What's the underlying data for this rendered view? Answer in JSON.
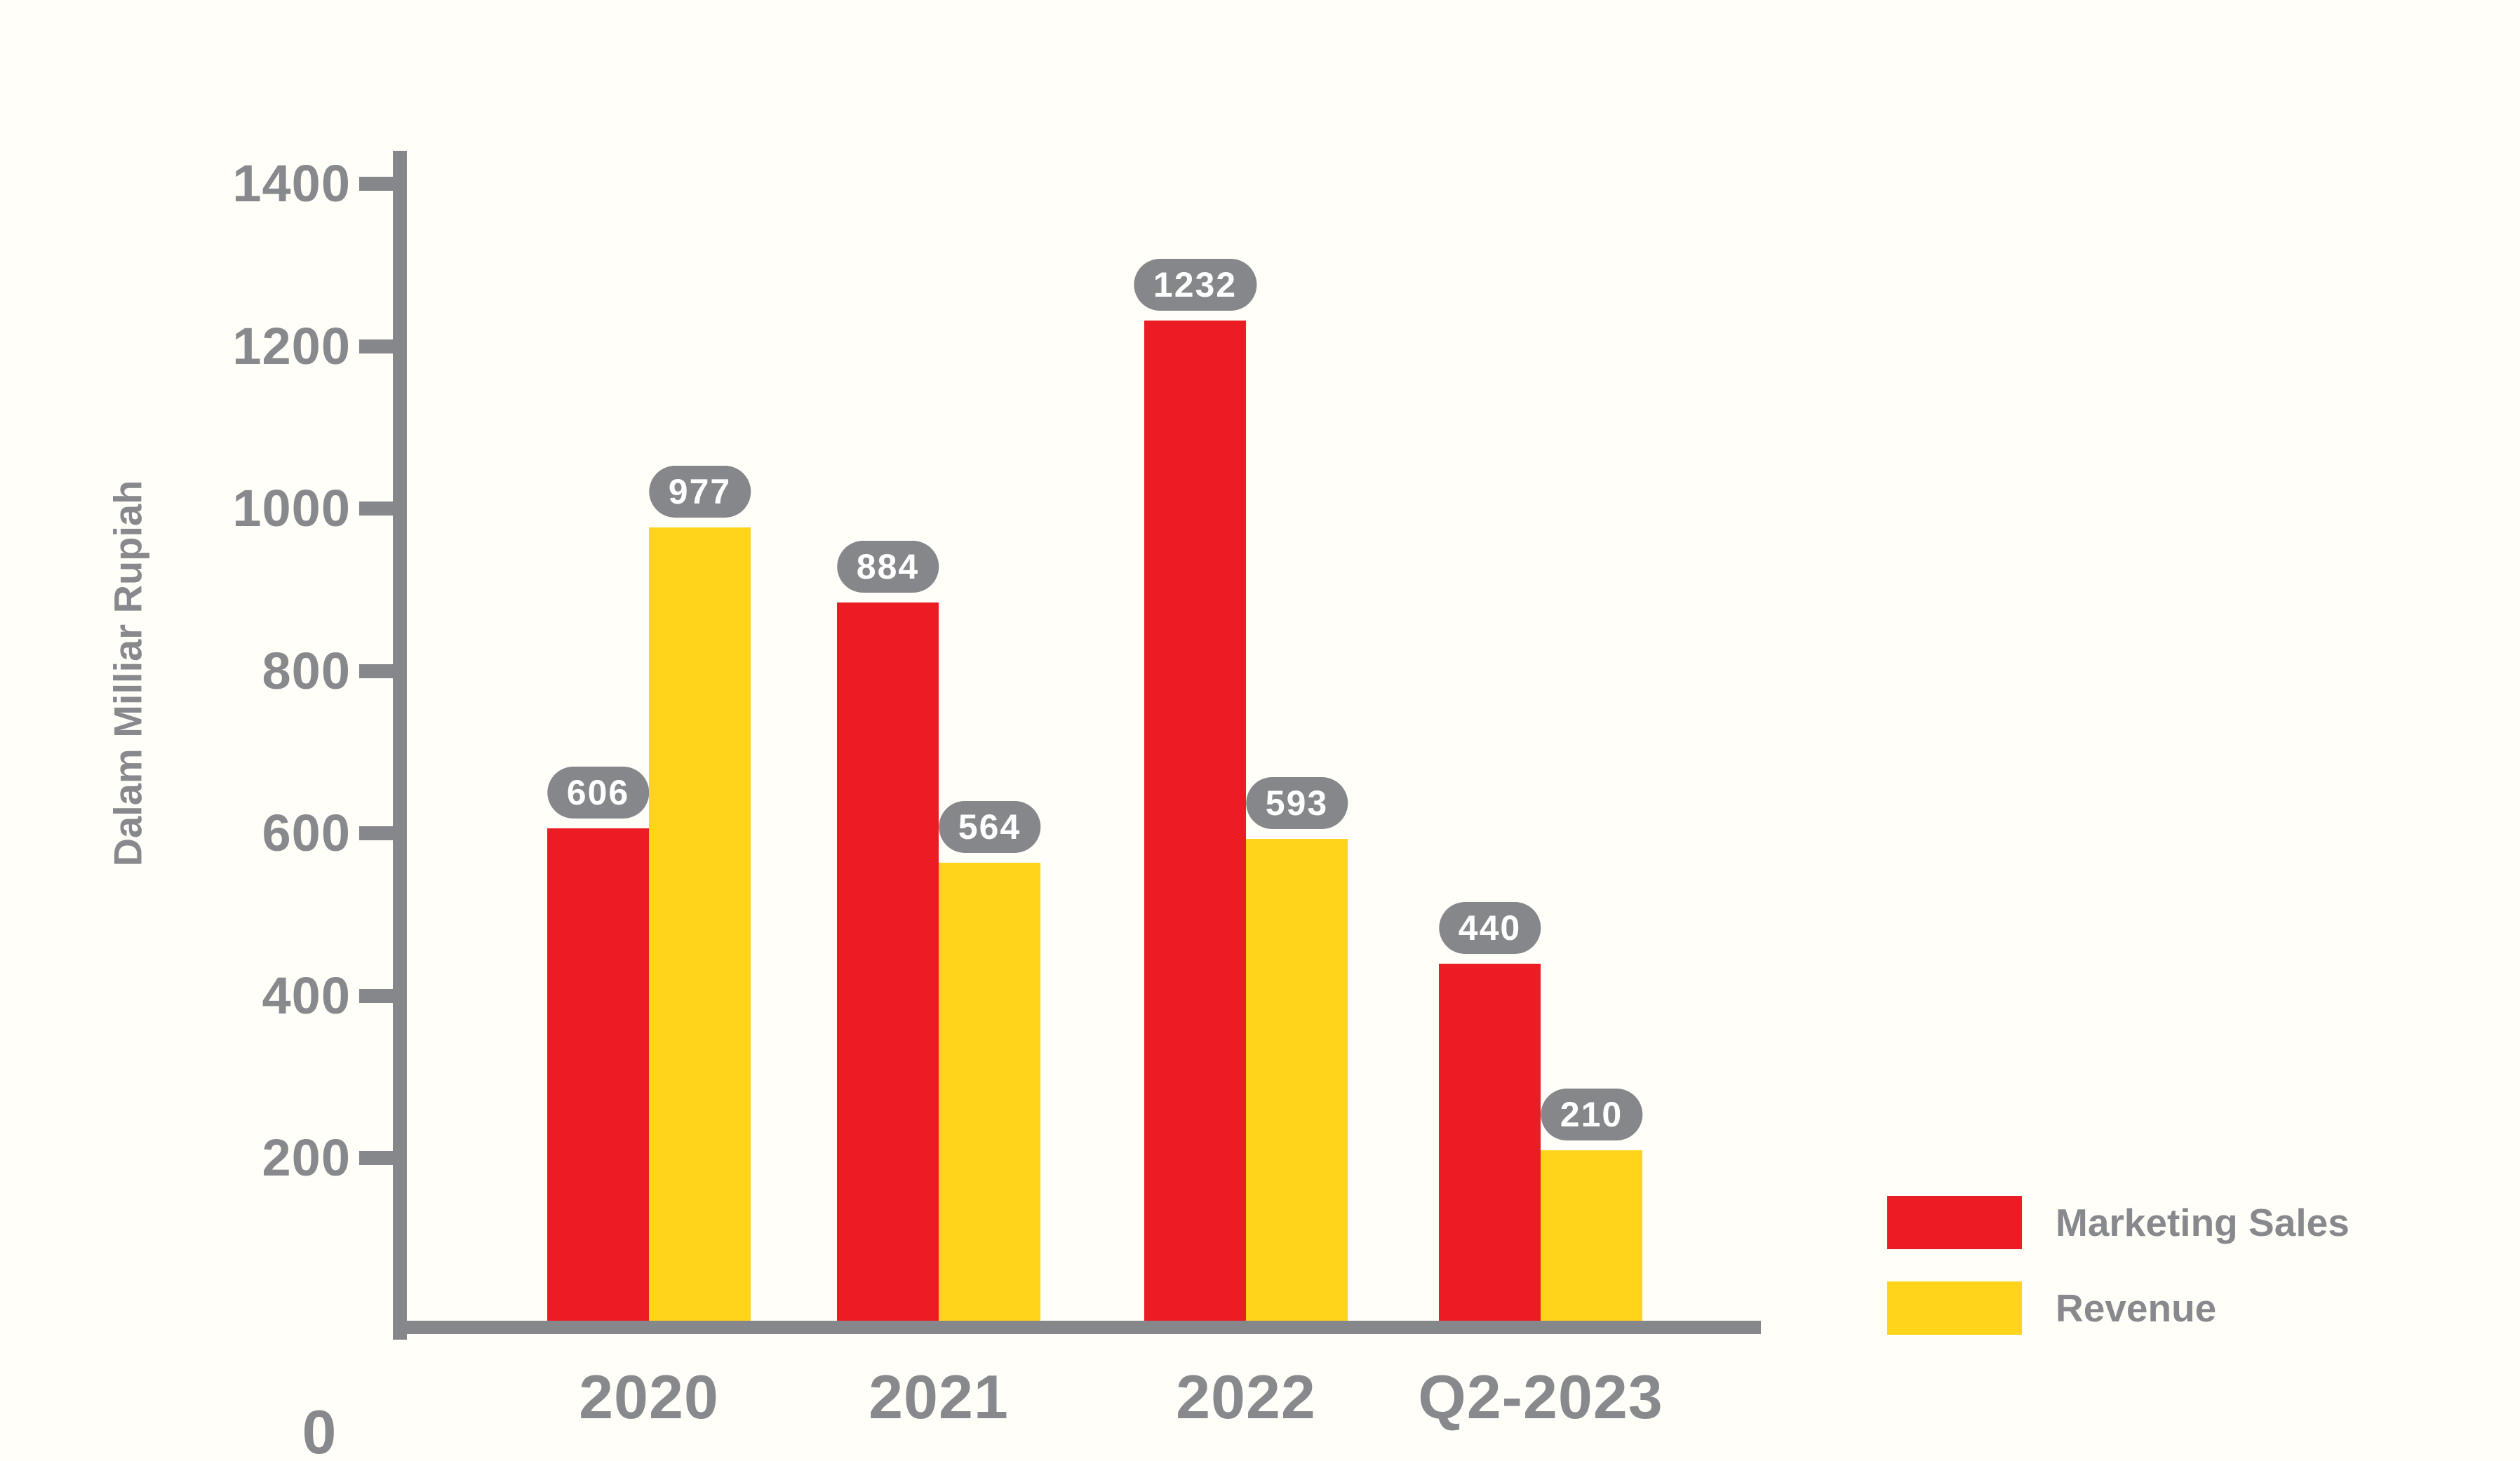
{
  "colors": {
    "red": "#EC1C24",
    "yellow": "#FFD41A",
    "axis_gray": "#85878A",
    "text_gray": "#87898C",
    "pill_bg": "#85878A",
    "pill_text": "#FFFFFF",
    "background": "#FFFEF9"
  },
  "y_axis": {
    "title": "Dalam Milliar Rupiah",
    "tick_values": [
      1400,
      1200,
      1000,
      800,
      600,
      400,
      200
    ],
    "origin_label": "0"
  },
  "x_axis": {
    "labels": [
      "2020",
      "2021",
      "2022",
      "Q2-2023"
    ]
  },
  "legend": {
    "items": [
      {
        "label": "Marketing Sales",
        "color": "red"
      },
      {
        "label": "Revenue",
        "color": "yellow"
      }
    ]
  },
  "chart_data": {
    "type": "bar",
    "categories": [
      "2020",
      "2021",
      "2022",
      "Q2-2023"
    ],
    "series": [
      {
        "name": "Marketing Sales",
        "color": "#EC1C24",
        "values": [
          606,
          884,
          1232,
          440
        ]
      },
      {
        "name": "Revenue",
        "color": "#FFD41A",
        "values": [
          977,
          564,
          593,
          210
        ]
      }
    ],
    "title": "",
    "xlabel": "",
    "ylabel": "Dalam Milliar Rupiah",
    "ylim": [
      0,
      1400
    ],
    "y_tick_step": 200,
    "grid": false,
    "legend_position": "bottom-right",
    "data_labels": "value pills above each bar"
  }
}
